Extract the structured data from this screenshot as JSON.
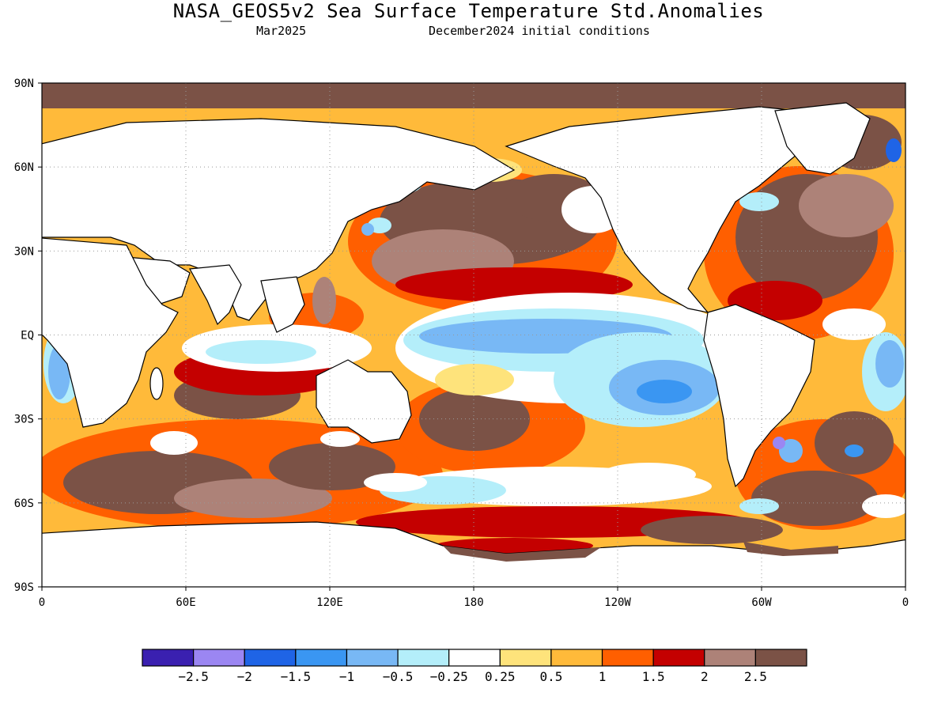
{
  "header": {
    "title": "NASA_GEOS5v2 Sea Surface Temperature Std.Anomalies",
    "valid_month": "Mar2025",
    "init_conditions": "December2024 initial conditions"
  },
  "axes": {
    "lat_labels": [
      "90N",
      "60N",
      "30N",
      "EQ",
      "30S",
      "60S",
      "90S"
    ],
    "lon_labels": [
      "0",
      "60E",
      "120E",
      "180",
      "120W",
      "60W",
      "0"
    ]
  },
  "colorbar": {
    "colors": [
      "#3a20b0",
      "#9b86f2",
      "#1f64e6",
      "#3a96f2",
      "#78b8f5",
      "#b4eefa",
      "#ffffff",
      "#fee37b",
      "#ffba3a",
      "#ff5f00",
      "#c40000",
      "#ad8278",
      "#7b5246"
    ],
    "labels": [
      "-2.5",
      "-2",
      "-1.5",
      "-1",
      "-0.5",
      "-0.25",
      "0.25",
      "0.5",
      "1",
      "1.5",
      "2",
      "2.5"
    ]
  },
  "map_colors": {
    "land": "#ffffff",
    "polar_ice": "#7b5246",
    "coast": "#000000",
    "grid": "#999999"
  }
}
